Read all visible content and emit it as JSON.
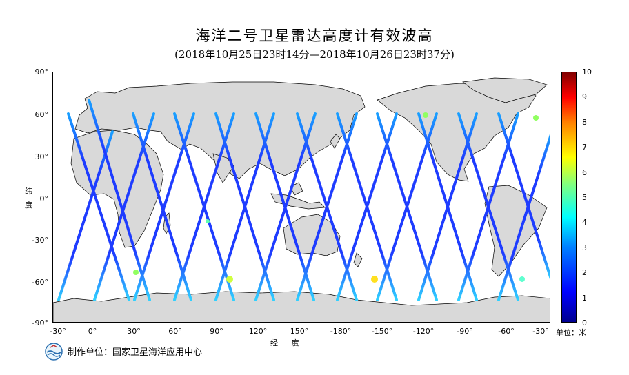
{
  "header": {
    "title": "海洋二号卫星雷达高度计有效波高",
    "subtitle": "(2018年10月25日23时14分—2018年10月26日23时37分)"
  },
  "axes": {
    "lat_label": "纬度",
    "lon_label": "经 度",
    "lat_ticks": [
      "90°",
      "60°",
      "30°",
      "0°",
      "-30°",
      "-60°",
      "-90°"
    ],
    "lon_ticks": [
      "-30°",
      "0°",
      "30°",
      "60°",
      "90°",
      "120°",
      "150°",
      "-180°",
      "-150°",
      "-120°",
      "-90°",
      "-60°",
      "-30°"
    ]
  },
  "colorbar": {
    "ticks": [
      "10",
      "9",
      "8",
      "7",
      "6",
      "5",
      "4",
      "3",
      "2",
      "1",
      "0"
    ],
    "unit": "单位：米",
    "min": 0,
    "max": 10
  },
  "footer": {
    "org": "制作单位：国家卫星海洋应用中心",
    "logo_icon": "soa-globe-logo"
  },
  "map": {
    "land_color": "#d9d9d9",
    "track_color": "#1e3cff",
    "lon_range": [
      -40,
      330
    ],
    "lat_range": [
      -90,
      90
    ]
  }
}
